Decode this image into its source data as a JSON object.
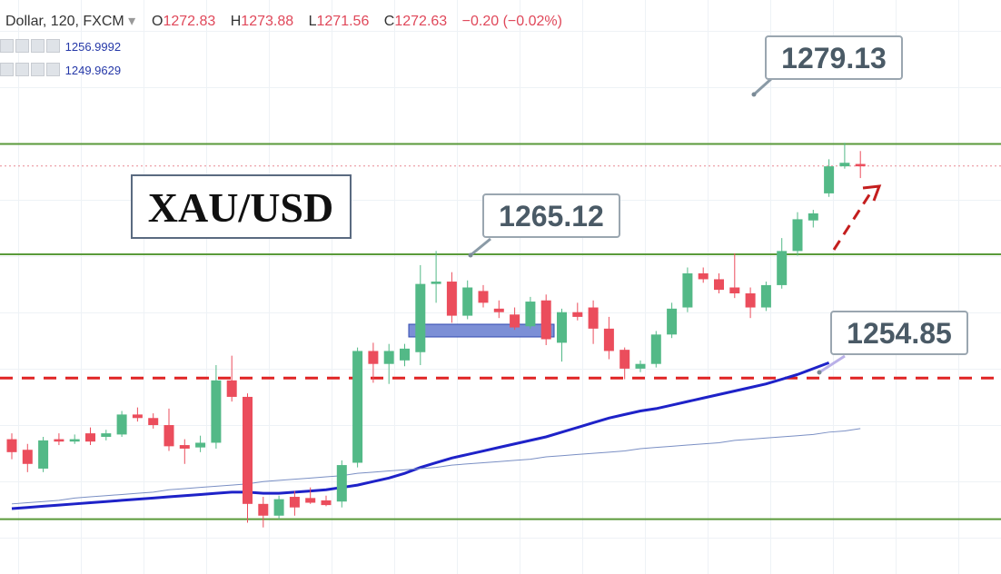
{
  "header": {
    "symbol": "Dollar, 120, FXCM",
    "o_label": "O",
    "open": 1272.83,
    "h_label": "H",
    "high": 1273.88,
    "l_label": "L",
    "low": 1271.56,
    "c_label": "C",
    "close": 1272.63,
    "change": "−0.20 (−0.02%)"
  },
  "indicators": [
    1256.9992,
    1249.9629
  ],
  "chart_data": {
    "type": "candlestick",
    "title": "XAU/USD",
    "ylim": [
      1237.94,
      1286.74
    ],
    "up_color": "#53b987",
    "down_color": "#eb4d5c",
    "open": [
      1249.4,
      1248.5,
      1246.9,
      1249.4,
      1249.2,
      1249.9,
      1249.6,
      1249.8,
      1251.5,
      1251.2,
      1250.6,
      1248.9,
      1248.7,
      1249.1,
      1254.4,
      1253.0,
      1243.9,
      1242.9,
      1244.5,
      1244.4,
      1244.2,
      1244.1,
      1247.4,
      1256.9,
      1255.8,
      1256.1,
      1256.8,
      1262.6,
      1262.8,
      1259.9,
      1262.0,
      1260.5,
      1260.0,
      1259.0,
      1261.2,
      1257.6,
      1260.2,
      1260.6,
      1258.8,
      1257.0,
      1255.4,
      1255.8,
      1258.3,
      1260.6,
      1263.5,
      1263.0,
      1262.3,
      1261.8,
      1260.6,
      1262.5,
      1265.4,
      1268.0,
      1270.3,
      1272.6,
      1272.8
    ],
    "high": [
      1249.9,
      1249.0,
      1249.6,
      1249.9,
      1249.8,
      1250.4,
      1250.2,
      1251.8,
      1252.1,
      1251.6,
      1252.0,
      1249.4,
      1249.7,
      1255.7,
      1256.5,
      1253.3,
      1244.5,
      1244.6,
      1245.0,
      1245.3,
      1244.6,
      1247.6,
      1257.2,
      1257.6,
      1257.5,
      1257.5,
      1264.2,
      1265.4,
      1263.6,
      1262.9,
      1262.5,
      1261.2,
      1260.6,
      1261.5,
      1261.7,
      1260.5,
      1261.0,
      1261.2,
      1259.8,
      1257.2,
      1256.1,
      1258.6,
      1261.0,
      1264.0,
      1264.0,
      1263.5,
      1265.2,
      1262.3,
      1262.8,
      1266.5,
      1268.7,
      1268.9,
      1273.2,
      1274.6,
      1273.9
    ],
    "low": [
      1247.7,
      1246.6,
      1246.6,
      1248.9,
      1249.0,
      1248.9,
      1249.3,
      1249.6,
      1250.9,
      1250.3,
      1248.4,
      1247.3,
      1248.3,
      1248.6,
      1252.6,
      1242.3,
      1241.9,
      1242.6,
      1242.9,
      1243.9,
      1243.7,
      1243.6,
      1247.0,
      1254.2,
      1254.1,
      1255.6,
      1255.7,
      1261.0,
      1259.3,
      1259.6,
      1260.6,
      1259.7,
      1258.7,
      1258.8,
      1257.4,
      1256.0,
      1259.5,
      1257.5,
      1256.2,
      1254.5,
      1255.1,
      1255.5,
      1258.0,
      1260.2,
      1262.7,
      1261.8,
      1261.4,
      1259.7,
      1260.3,
      1262.2,
      1265.0,
      1267.4,
      1270.0,
      1272.4,
      1271.6
    ],
    "close": [
      1248.3,
      1247.3,
      1249.3,
      1249.2,
      1249.4,
      1249.2,
      1249.9,
      1251.5,
      1251.2,
      1250.6,
      1248.8,
      1248.6,
      1249.1,
      1254.4,
      1253.0,
      1243.9,
      1242.9,
      1244.3,
      1243.6,
      1244.0,
      1243.8,
      1247.2,
      1256.9,
      1255.8,
      1256.9,
      1257.1,
      1262.6,
      1262.8,
      1259.9,
      1262.3,
      1261.0,
      1260.2,
      1258.9,
      1261.1,
      1257.9,
      1260.2,
      1259.8,
      1258.8,
      1256.9,
      1255.4,
      1255.8,
      1258.3,
      1260.5,
      1263.5,
      1263.0,
      1262.1,
      1261.8,
      1260.6,
      1262.5,
      1265.4,
      1268.1,
      1268.6,
      1272.6,
      1272.9,
      1272.6
    ],
    "series": [
      {
        "color": "#1e22c8",
        "style": "thick",
        "values": [
          1243.5,
          1243.6,
          1243.7,
          1243.8,
          1243.9,
          1244.0,
          1244.1,
          1244.2,
          1244.3,
          1244.4,
          1244.5,
          1244.6,
          1244.7,
          1244.8,
          1244.9,
          1244.9,
          1244.8,
          1244.8,
          1244.9,
          1245.0,
          1245.1,
          1245.3,
          1245.5,
          1245.8,
          1246.1,
          1246.5,
          1247.0,
          1247.4,
          1247.8,
          1248.1,
          1248.4,
          1248.7,
          1249.0,
          1249.3,
          1249.6,
          1250.0,
          1250.4,
          1250.8,
          1251.2,
          1251.5,
          1251.8,
          1252.0,
          1252.3,
          1252.6,
          1252.9,
          1253.2,
          1253.5,
          1253.8,
          1254.1,
          1254.5,
          1254.9,
          1255.4,
          1255.9,
          null,
          null
        ]
      },
      {
        "color": "#7a8fc4",
        "style": "thin",
        "values": [
          1243.9,
          1244.0,
          1244.1,
          1244.2,
          1244.4,
          1244.5,
          1244.6,
          1244.7,
          1244.8,
          1244.9,
          1245.1,
          1245.2,
          1245.3,
          1245.4,
          1245.5,
          1245.6,
          1245.8,
          1245.9,
          1246.0,
          1246.1,
          1246.2,
          1246.3,
          1246.5,
          1246.6,
          1246.7,
          1246.8,
          1246.9,
          1247.0,
          1247.2,
          1247.3,
          1247.4,
          1247.5,
          1247.6,
          1247.7,
          1247.9,
          1248.0,
          1248.1,
          1248.2,
          1248.3,
          1248.4,
          1248.6,
          1248.7,
          1248.8,
          1248.9,
          1249.0,
          1249.1,
          1249.3,
          1249.4,
          1249.5,
          1249.6,
          1249.7,
          1249.8,
          1250.0,
          1250.1,
          1250.3
        ]
      }
    ],
    "levels": [
      {
        "value": 1274.5,
        "color": "#5a9a3a",
        "style": "solid"
      },
      {
        "value": 1265.12,
        "color": "#5a9a3a",
        "style": "solid"
      },
      {
        "value": 1242.6,
        "color": "#5a9a3a",
        "style": "solid"
      },
      {
        "value": 1254.6,
        "color": "#e02424",
        "style": "dashed"
      },
      {
        "value": 1272.63,
        "color": "#e88a94",
        "style": "dotted"
      }
    ],
    "annotations": [
      {
        "text": 1279.13
      },
      {
        "text": 1265.12
      },
      {
        "text": 1254.85
      }
    ]
  }
}
